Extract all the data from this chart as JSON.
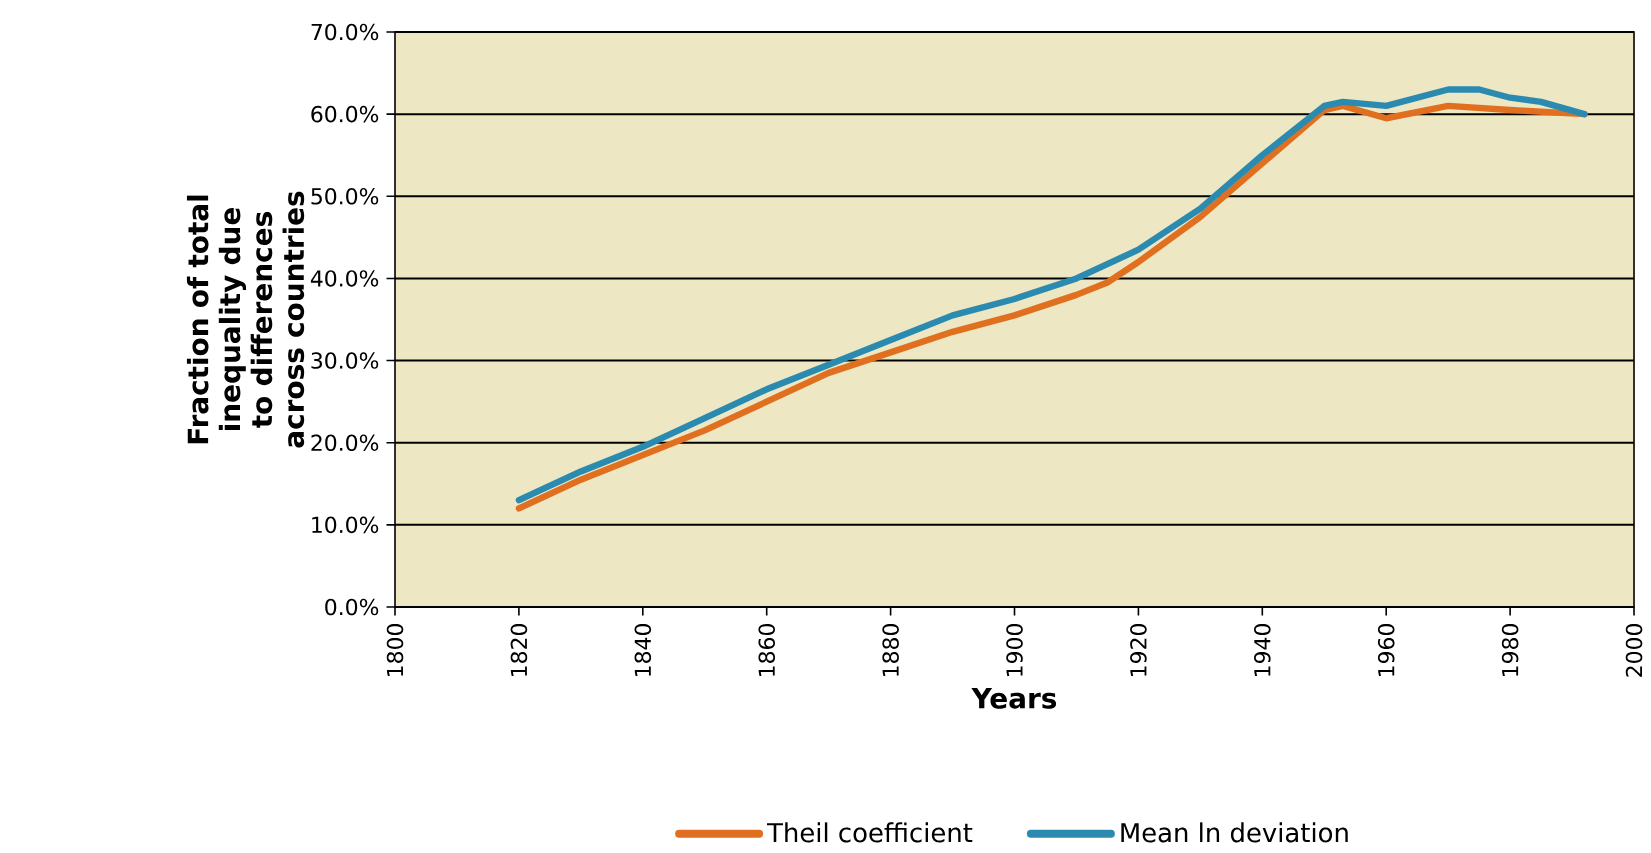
{
  "chart_data": {
    "type": "line",
    "xlabel": "Years",
    "ylabel": "Fraction of total inequality due to differences across countries",
    "xlim": [
      1800,
      2000
    ],
    "xticks": [
      1800,
      1820,
      1840,
      1860,
      1880,
      1900,
      1920,
      1940,
      1960,
      1980,
      2000
    ],
    "ylim": [
      0,
      70
    ],
    "yticks": [
      {
        "value": 0,
        "label": "0.0%"
      },
      {
        "value": 10,
        "label": "10.0%"
      },
      {
        "value": 20,
        "label": "20.0%"
      },
      {
        "value": 30,
        "label": "30.0%"
      },
      {
        "value": 40,
        "label": "40.0%"
      },
      {
        "value": 50,
        "label": "50.0%"
      },
      {
        "value": 60,
        "label": "60.0%"
      },
      {
        "value": 70,
        "label": "70.0%"
      }
    ],
    "grid": "y",
    "legend": "bottom",
    "series": [
      {
        "name": "Theil coefficient",
        "color": "#e07020",
        "x": [
          1820,
          1830,
          1840,
          1850,
          1860,
          1870,
          1880,
          1890,
          1900,
          1910,
          1915,
          1920,
          1930,
          1940,
          1950,
          1953,
          1960,
          1970,
          1980,
          1992
        ],
        "values": [
          12,
          15.5,
          18.5,
          21.5,
          25,
          28.5,
          31,
          33.5,
          35.5,
          38,
          39.5,
          42,
          47.5,
          54,
          60.5,
          61,
          59.5,
          61,
          60.5,
          60
        ]
      },
      {
        "name": "Mean ln deviation",
        "color": "#2a8ab0",
        "x": [
          1820,
          1830,
          1840,
          1850,
          1860,
          1870,
          1880,
          1890,
          1900,
          1910,
          1920,
          1930,
          1940,
          1950,
          1953,
          1960,
          1970,
          1975,
          1980,
          1985,
          1992
        ],
        "values": [
          13,
          16.5,
          19.5,
          23,
          26.5,
          29.5,
          32.5,
          35.5,
          37.5,
          40,
          43.5,
          48.5,
          55,
          61,
          61.5,
          61,
          63,
          63,
          62,
          61.5,
          60
        ]
      }
    ]
  }
}
